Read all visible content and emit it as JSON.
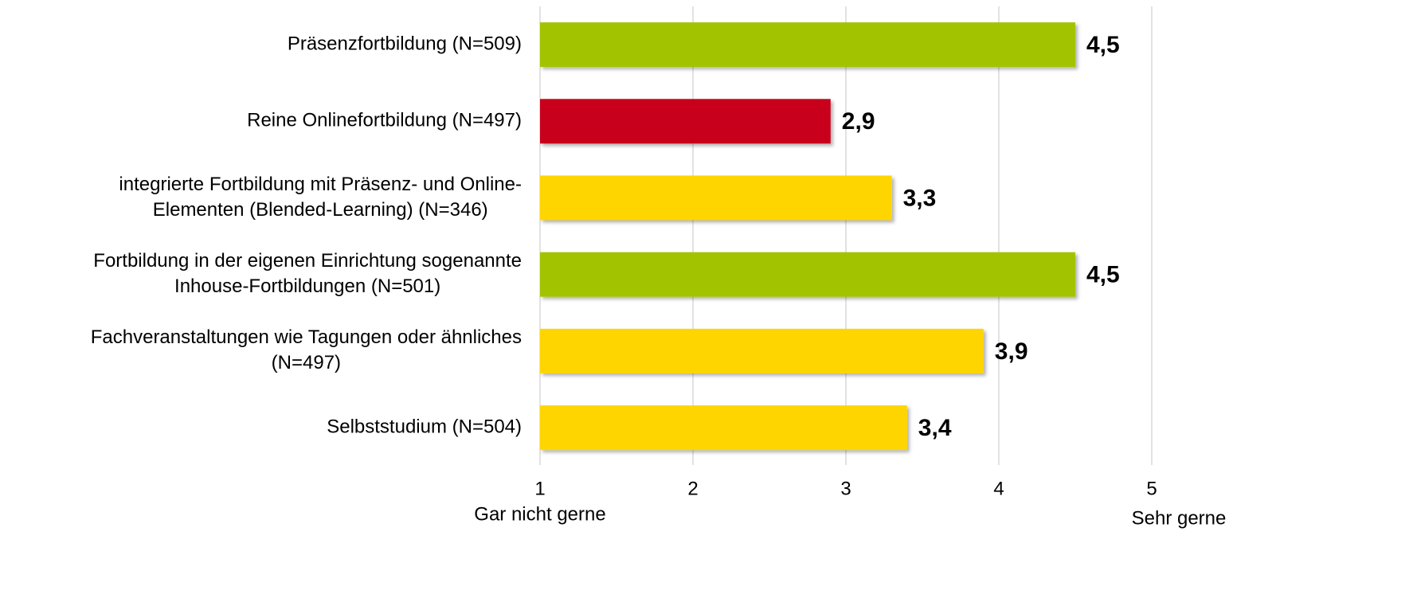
{
  "chart_data": {
    "type": "hbar",
    "categories": [
      [
        "Präsenzfortbildung (N=509)"
      ],
      [
        "Reine Onlinefortbildung (N=497)"
      ],
      [
        "integrierte Fortbildung mit Präsenz- und Online-",
        "Elementen (Blended-Learning) (N=346)"
      ],
      [
        "Fortbildung in der eigenen Einrichtung sogenannte",
        "Inhouse-Fortbildungen (N=501)"
      ],
      [
        "Fachveranstaltungen wie Tagungen oder ähnliches",
        "(N=497)"
      ],
      [
        "Selbststudium (N=504)"
      ]
    ],
    "values": [
      4.5,
      2.9,
      3.3,
      4.5,
      3.9,
      3.4
    ],
    "value_labels": [
      "4,5",
      "2,9",
      "3,3",
      "4,5",
      "3,9",
      "3,4"
    ],
    "colors": [
      "#a2c400",
      "#c8001e",
      "#ffd500",
      "#a2c400",
      "#ffd500",
      "#ffd500"
    ],
    "xlim": [
      1,
      5
    ],
    "xticks": [
      1,
      2,
      3,
      4,
      5
    ],
    "grid": true,
    "axis_end_labels": {
      "min": "Gar nicht gerne",
      "max": "Sehr gerne"
    }
  }
}
